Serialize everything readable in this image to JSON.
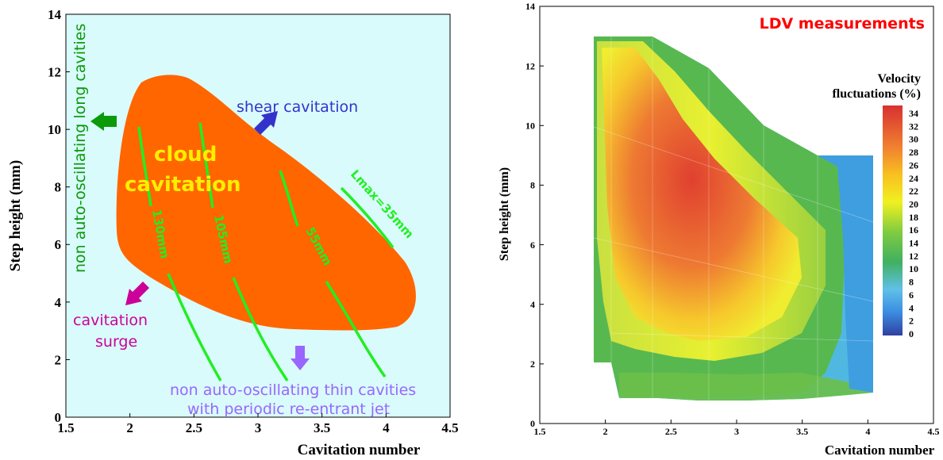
{
  "chart_data": [
    {
      "type": "area",
      "xlabel": "Cavitation number",
      "ylabel": "Step height (mm)",
      "xlim": [
        1.5,
        4.5
      ],
      "ylim": [
        0,
        14
      ],
      "x_ticks": [
        "1.5",
        "2",
        "2.5",
        "3",
        "3.5",
        "4",
        "4.5"
      ],
      "y_ticks": [
        "0",
        "2",
        "4",
        "6",
        "8",
        "10",
        "12",
        "14"
      ],
      "background": "#d9fbfb",
      "regions": [
        {
          "label": "cloud\ncavitation",
          "color": "#ff6600",
          "label_color": "#ffee00"
        }
      ],
      "lines": [
        {
          "label": "130mm",
          "color": "#22ee22"
        },
        {
          "label": "105mm",
          "color": "#22ee22"
        },
        {
          "label": "55mm",
          "color": "#22ee22"
        },
        {
          "label": "Lmax=35mm",
          "color": "#22ee22"
        }
      ],
      "annotations": [
        {
          "text": "non auto-oscillating long cavities",
          "color": "#0a9a0a",
          "arrow": "left"
        },
        {
          "text": "shear cavitation",
          "color": "#3333cc",
          "arrow": "up-right"
        },
        {
          "text": "cavitation\nsurge",
          "color": "#cc0099",
          "arrow": "down-left"
        },
        {
          "text": "non auto-oscillating thin cavities\nwith periodic re-entrant jet",
          "color": "#9966ff",
          "arrow": "down"
        }
      ]
    },
    {
      "type": "heatmap",
      "title": "LDV measurements",
      "title_color": "#ff0000",
      "xlabel": "Cavitation number",
      "ylabel": "Step height (mm)",
      "xlim": [
        1.5,
        4.5
      ],
      "ylim": [
        0,
        14
      ],
      "x_ticks": [
        "1.5",
        "2",
        "2.5",
        "3",
        "3.5",
        "4",
        "4.5"
      ],
      "y_ticks": [
        "0",
        "2",
        "4",
        "6",
        "8",
        "10",
        "12",
        "14"
      ],
      "colorbar": {
        "title": "Velocity\nfluctuations (%)",
        "ticks": [
          "34",
          "32",
          "30",
          "28",
          "26",
          "24",
          "22",
          "20",
          "18",
          "16",
          "14",
          "12",
          "10",
          "8",
          "6",
          "4",
          "2",
          "0"
        ],
        "range": [
          0,
          35
        ]
      }
    }
  ]
}
